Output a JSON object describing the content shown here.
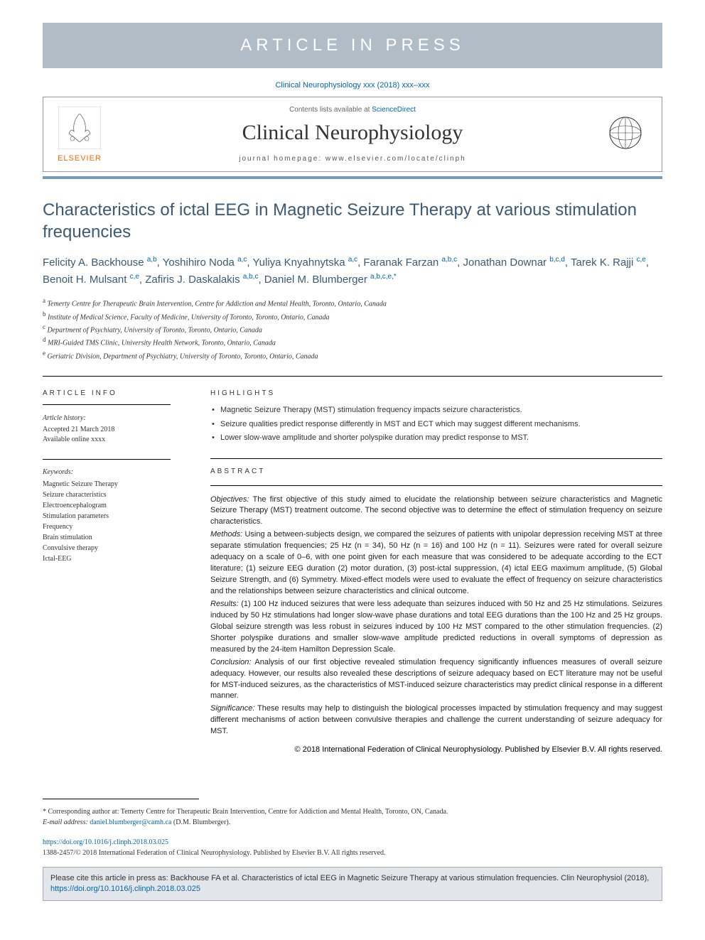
{
  "banner": {
    "text": "ARTICLE IN PRESS",
    "bg_color": "#b0bcc6",
    "text_color": "#ffffff"
  },
  "citation_top": "Clinical Neurophysiology xxx (2018) xxx–xxx",
  "header": {
    "publisher_name": "ELSEVIER",
    "contents_prefix": "Contents lists available at ",
    "contents_link": "ScienceDirect",
    "journal_name": "Clinical Neurophysiology",
    "homepage_prefix": "journal homepage: ",
    "homepage": "www.elsevier.com/locate/clinph"
  },
  "colors": {
    "accent": "#749bb8",
    "heading": "#3b5a73",
    "link": "#0066aa",
    "elsevier_orange": "#ff6600",
    "cite_bg": "#e2e6eb"
  },
  "title": "Characteristics of ictal EEG in Magnetic Seizure Therapy at various stimulation frequencies",
  "authors_html": "Felicity A. Backhouse <sup>a,b</sup>, Yoshihiro Noda <sup>a,c</sup>, Yuliya Knyahnytska <sup>a,c</sup>, Faranak Farzan <sup>a,b,c</sup>, Jonathan Downar <sup>b,c,d</sup>, Tarek K. Rajji <sup>c,e</sup>, Benoit H. Mulsant <sup>c,e</sup>, Zafiris J. Daskalakis <sup>a,b,c</sup>, Daniel M. Blumberger <sup>a,b,c,e,*</sup>",
  "affiliations": [
    {
      "key": "a",
      "text": "Temerty Centre for Therapeutic Brain Intervention, Centre for Addiction and Mental Health, Toronto, Ontario, Canada"
    },
    {
      "key": "b",
      "text": "Institute of Medical Science, Faculty of Medicine, University of Toronto, Toronto, Ontario, Canada"
    },
    {
      "key": "c",
      "text": "Department of Psychiatry, University of Toronto, Toronto, Ontario, Canada"
    },
    {
      "key": "d",
      "text": "MRI-Guided TMS Clinic, University Health Network, Toronto, Ontario, Canada"
    },
    {
      "key": "e",
      "text": "Geriatric Division, Department of Psychiatry, University of Toronto, Toronto, Ontario, Canada"
    }
  ],
  "article_info": {
    "label": "ARTICLE INFO",
    "history_label": "Article history:",
    "history": "Accepted 21 March 2018\nAvailable online xxxx",
    "keywords_label": "Keywords:",
    "keywords": [
      "Magnetic Seizure Therapy",
      "Seizure characteristics",
      "Electroencephalogram",
      "Stimulation parameters",
      "Frequency",
      "Brain stimulation",
      "Convulsive therapy",
      "Ictal-EEG"
    ]
  },
  "highlights": {
    "label": "HIGHLIGHTS",
    "items": [
      "Magnetic Seizure Therapy (MST) stimulation frequency impacts seizure characteristics.",
      "Seizure qualities predict response differently in MST and ECT which may suggest different mechanisms.",
      "Lower slow-wave amplitude and shorter polyspike duration may predict response to MST."
    ]
  },
  "abstract": {
    "label": "ABSTRACT",
    "sections": [
      {
        "name": "Objectives:",
        "text": "The first objective of this study aimed to elucidate the relationship between seizure characteristics and Magnetic Seizure Therapy (MST) treatment outcome. The second objective was to determine the effect of stimulation frequency on seizure characteristics."
      },
      {
        "name": "Methods:",
        "text": "Using a between-subjects design, we compared the seizures of patients with unipolar depression receiving MST at three separate stimulation frequencies; 25 Hz (n = 34), 50 Hz (n = 16) and 100 Hz (n = 11). Seizures were rated for overall seizure adequacy on a scale of 0–6, with one point given for each measure that was considered to be adequate according to the ECT literature; (1) seizure EEG duration (2) motor duration, (3) post-ictal suppression, (4) ictal EEG maximum amplitude, (5) Global Seizure Strength, and (6) Symmetry. Mixed-effect models were used to evaluate the effect of frequency on seizure characteristics and the relationships between seizure characteristics and clinical outcome."
      },
      {
        "name": "Results:",
        "text": "(1) 100 Hz induced seizures that were less adequate than seizures induced with 50 Hz and 25 Hz stimulations. Seizures induced by 50 Hz stimulations had longer slow-wave phase durations and total EEG durations than the 100 Hz and 25 Hz groups. Global seizure strength was less robust in seizures induced by 100 Hz MST compared to the other stimulation frequencies. (2) Shorter polyspike durations and smaller slow-wave amplitude predicted reductions in overall symptoms of depression as measured by the 24-item Hamilton Depression Scale."
      },
      {
        "name": "Conclusion:",
        "text": "Analysis of our first objective revealed stimulation frequency significantly influences measures of overall seizure adequacy. However, our results also revealed these descriptions of seizure adequacy based on ECT literature may not be useful for MST-induced seizures, as the characteristics of MST-induced seizure characteristics may predict clinical response in a different manner."
      },
      {
        "name": "Significance:",
        "text": "These results may help to distinguish the biological processes impacted by stimulation frequency and may suggest different mechanisms of action between convulsive therapies and challenge the current understanding of seizure adequacy for MST."
      }
    ],
    "copyright": "© 2018 International Federation of Clinical Neurophysiology. Published by Elsevier B.V. All rights reserved."
  },
  "corresponding": {
    "symbol": "*",
    "text": "Corresponding author at: Temerty Centre for Therapeutic Brain Intervention, Centre for Addiction and Mental Health, Toronto, ON, Canada.",
    "email_label": "E-mail address:",
    "email": "daniel.blumberger@camh.ca",
    "email_suffix": "(D.M. Blumberger)."
  },
  "doi": {
    "url": "https://doi.org/10.1016/j.clinph.2018.03.025",
    "issn": "1388-2457/© 2018 International Federation of Clinical Neurophysiology. Published by Elsevier B.V. All rights reserved."
  },
  "cite_box": {
    "prefix": "Please cite this article in press as: Backhouse FA et al. Characteristics of ictal EEG in Magnetic Seizure Therapy at various stimulation frequencies. Clin Neurophysiol (2018), ",
    "link": "https://doi.org/10.1016/j.clinph.2018.03.025"
  }
}
